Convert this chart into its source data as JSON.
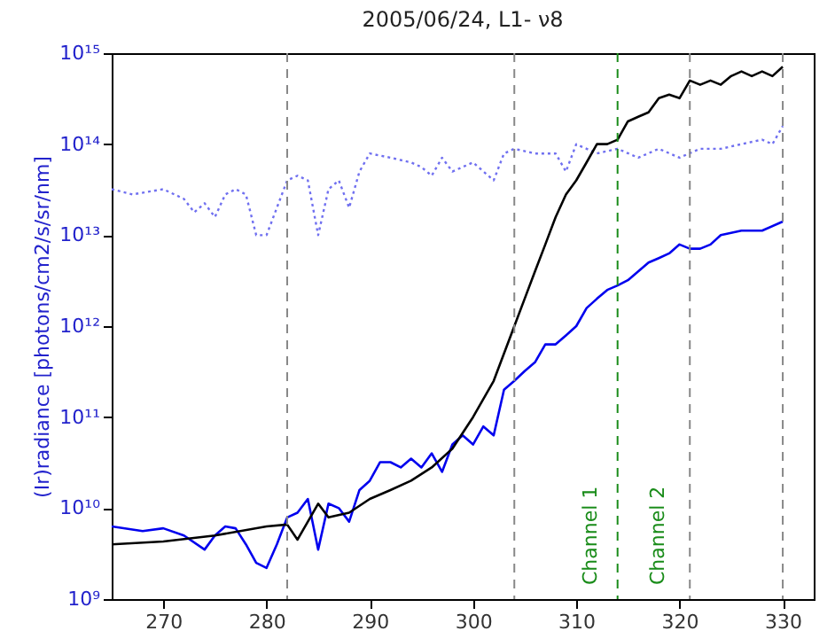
{
  "chart_data": {
    "type": "line",
    "title": "2005/06/24, L1- ν8",
    "ylabel": "(Ir)radiance  [photons/cm2/s/sr/nm]",
    "log": "y",
    "grid": false,
    "xlim": [
      265,
      333
    ],
    "xticks": [
      270,
      280,
      290,
      300,
      310,
      320,
      330
    ],
    "ylim": [
      1000000000.0,
      1000000000000000.0
    ],
    "yticks": [
      {
        "value": 1000000000.0,
        "label": "10⁹"
      },
      {
        "value": 10000000000.0,
        "label": "10¹⁰"
      },
      {
        "value": 100000000000.0,
        "label": "10¹¹"
      },
      {
        "value": 1000000000000.0,
        "label": "10¹²"
      },
      {
        "value": 10000000000000.0,
        "label": "10¹³"
      },
      {
        "value": 100000000000000.0,
        "label": "10¹⁴"
      },
      {
        "value": 1000000000000000.0,
        "label": "10¹⁵"
      }
    ],
    "series": [
      {
        "color": "#7070f0",
        "line_style": "dotted",
        "x": [
          265,
          267,
          270,
          272,
          273,
          274,
          275,
          276,
          277,
          278,
          279,
          280,
          281,
          282,
          283,
          284,
          285,
          286,
          287,
          288,
          289,
          290,
          292,
          294,
          295,
          296,
          297,
          298,
          300,
          302,
          303,
          304,
          306,
          308,
          309,
          310,
          312,
          314,
          316,
          318,
          320,
          322,
          324,
          326,
          328,
          329,
          330
        ],
        "values": [
          32000000000000.0,
          28000000000000.0,
          32000000000000.0,
          25000000000000.0,
          17800000000000.0,
          22400000000000.0,
          15800000000000.0,
          28000000000000.0,
          32000000000000.0,
          28000000000000.0,
          10000000000000.0,
          10000000000000.0,
          20000000000000.0,
          40000000000000.0,
          45000000000000.0,
          40000000000000.0,
          10000000000000.0,
          32000000000000.0,
          40000000000000.0,
          20000000000000.0,
          50000000000000.0,
          79000000000000.0,
          71000000000000.0,
          63000000000000.0,
          56000000000000.0,
          45000000000000.0,
          71000000000000.0,
          50000000000000.0,
          63000000000000.0,
          40000000000000.0,
          79000000000000.0,
          89000000000000.0,
          79000000000000.0,
          79000000000000.0,
          50000000000000.0,
          100000000000000.0,
          79000000000000.0,
          89000000000000.0,
          71000000000000.0,
          89000000000000.0,
          71000000000000.0,
          89000000000000.0,
          89000000000000.0,
          100000000000000.0,
          112000000000000.0,
          100000000000000.0,
          158000000000000.0
        ]
      },
      {
        "color": "#0000ee",
        "line_style": "solid",
        "x": [
          265,
          268,
          270,
          272,
          274,
          275,
          276,
          277,
          278,
          279,
          280,
          281,
          282,
          283,
          284,
          285,
          286,
          287,
          288,
          289,
          290,
          291,
          292,
          293,
          294,
          295,
          296,
          297,
          298,
          299,
          300,
          301,
          302,
          303,
          304,
          305,
          306,
          307,
          308,
          309,
          310,
          311,
          312,
          313,
          314,
          315,
          316,
          317,
          318,
          319,
          320,
          321,
          322,
          323,
          324,
          326,
          328,
          330
        ],
        "values": [
          6300000000.0,
          5600000000.0,
          6000000000.0,
          5000000000.0,
          3500000000.0,
          5000000000.0,
          6300000000.0,
          6000000000.0,
          4000000000.0,
          2500000000.0,
          2200000000.0,
          4000000000.0,
          7900000000.0,
          8900000000.0,
          12600000000.0,
          3500000000.0,
          11200000000.0,
          10000000000.0,
          7100000000.0,
          15800000000.0,
          20000000000.0,
          32000000000.0,
          32000000000.0,
          28000000000.0,
          35000000000.0,
          28000000000.0,
          40000000000.0,
          25000000000.0,
          50000000000.0,
          63000000000.0,
          50000000000.0,
          79000000000.0,
          63000000000.0,
          200000000000.0,
          250000000000.0,
          320000000000.0,
          400000000000.0,
          630000000000.0,
          630000000000.0,
          790000000000.0,
          1000000000000.0,
          1580000000000.0,
          2000000000000.0,
          2500000000000.0,
          2800000000000.0,
          3200000000000.0,
          4000000000000.0,
          5000000000000.0,
          5600000000000.0,
          6300000000000.0,
          7900000000000.0,
          7100000000000.0,
          7100000000000.0,
          7900000000000.0,
          10000000000000.0,
          11200000000000.0,
          11200000000000.0,
          14100000000000.0
        ]
      },
      {
        "color": "#000000",
        "line_style": "solid",
        "x": [
          265,
          270,
          275,
          280,
          282,
          283,
          284,
          285,
          286,
          288,
          290,
          292,
          294,
          296,
          298,
          300,
          302,
          304,
          305,
          306,
          307,
          308,
          309,
          310,
          311,
          312,
          313,
          314,
          315,
          316,
          317,
          318,
          319,
          320,
          321,
          322,
          323,
          324,
          325,
          326,
          327,
          328,
          329,
          330
        ],
        "values": [
          4000000000.0,
          4300000000.0,
          5000000000.0,
          6300000000.0,
          6600000000.0,
          4500000000.0,
          7100000000.0,
          11200000000.0,
          7900000000.0,
          8900000000.0,
          12600000000.0,
          15800000000.0,
          20000000000.0,
          28000000000.0,
          45000000000.0,
          100000000000.0,
          250000000000.0,
          1000000000000.0,
          2000000000000.0,
          4000000000000.0,
          7900000000000.0,
          15800000000000.0,
          28000000000000.0,
          40000000000000.0,
          63000000000000.0,
          100000000000000.0,
          100000000000000.0,
          112000000000000.0,
          178000000000000.0,
          200000000000000.0,
          224000000000000.0,
          320000000000000.0,
          350000000000000.0,
          320000000000000.0,
          500000000000000.0,
          450000000000000.0,
          500000000000000.0,
          450000000000000.0,
          560000000000000.0,
          630000000000000.0,
          560000000000000.0,
          630000000000000.0,
          560000000000000.0,
          710000000000000.0
        ]
      }
    ],
    "ref_lines": [
      {
        "axis": "x",
        "value": 282,
        "color": "#888888",
        "line_style": "dashed"
      },
      {
        "axis": "x",
        "value": 304,
        "color": "#888888",
        "line_style": "dashed"
      },
      {
        "axis": "x",
        "value": 314,
        "color": "#1a8c1a",
        "line_style": "dashed"
      },
      {
        "axis": "x",
        "value": 321,
        "color": "#888888",
        "line_style": "dashed"
      },
      {
        "axis": "x",
        "value": 330,
        "color": "#888888",
        "line_style": "dashed"
      }
    ],
    "annotations": [
      "Channel 1",
      "Channel 2"
    ]
  }
}
